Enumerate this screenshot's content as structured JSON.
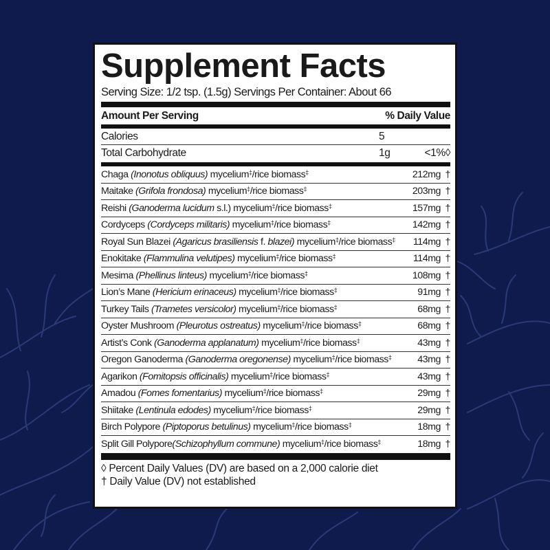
{
  "colors": {
    "background": "#0f1b4c",
    "panel": "#ffffff",
    "text": "#1a1a1a",
    "pattern": "#2a3a78"
  },
  "title": "Supplement Facts",
  "serving": "Serving Size: 1/2 tsp. (1.5g)  Servings Per Container: About 66",
  "header": {
    "amount": "Amount Per Serving",
    "dv": "% Daily Value"
  },
  "nutrients": [
    {
      "label": "Calories",
      "amount": "5",
      "dv": ""
    },
    {
      "label": "Total Carbohydrate",
      "amount": "1g",
      "dv": "<1%◊"
    }
  ],
  "ingredients": [
    {
      "segs": [
        {
          "t": "Chaga "
        },
        {
          "t": "(Inonotus obliquus)",
          "i": true
        },
        {
          "t": " mycelium"
        },
        {
          "t": "‡",
          "s": true
        },
        {
          "t": "/rice biomass"
        },
        {
          "t": "‡",
          "s": true
        }
      ],
      "amount": "212mg",
      "dv": "†"
    },
    {
      "segs": [
        {
          "t": "Maitake "
        },
        {
          "t": "(Grifola frondosa)",
          "i": true
        },
        {
          "t": " mycelium"
        },
        {
          "t": "‡",
          "s": true
        },
        {
          "t": "/rice biomass"
        },
        {
          "t": "‡",
          "s": true
        }
      ],
      "amount": "203mg",
      "dv": "†"
    },
    {
      "segs": [
        {
          "t": "Reishi "
        },
        {
          "t": "(Ganoderma lucidum",
          "i": true
        },
        {
          "t": " s.l.)"
        },
        {
          "t": " mycelium"
        },
        {
          "t": "‡",
          "s": true
        },
        {
          "t": "/rice biomass"
        },
        {
          "t": "‡",
          "s": true
        }
      ],
      "amount": "157mg",
      "dv": "†"
    },
    {
      "segs": [
        {
          "t": "Cordyceps "
        },
        {
          "t": "(Cordyceps militaris)",
          "i": true
        },
        {
          "t": " mycelium"
        },
        {
          "t": "‡",
          "s": true
        },
        {
          "t": "/rice biomass"
        },
        {
          "t": "‡",
          "s": true
        }
      ],
      "amount": "142mg",
      "dv": "†"
    },
    {
      "segs": [
        {
          "t": "Royal Sun Blazei "
        },
        {
          "t": "(Agaricus brasiliensis",
          "i": true
        },
        {
          "t": " f. "
        },
        {
          "t": "blazei)",
          "i": true
        },
        {
          "t": " mycelium"
        },
        {
          "t": "‡",
          "s": true
        },
        {
          "t": "/rice biomass"
        },
        {
          "t": "‡",
          "s": true
        }
      ],
      "amount": "114mg",
      "dv": "†"
    },
    {
      "segs": [
        {
          "t": "Enokitake "
        },
        {
          "t": "(Flammulina velutipes)",
          "i": true
        },
        {
          "t": " mycelium"
        },
        {
          "t": "‡",
          "s": true
        },
        {
          "t": "/rice biomass"
        },
        {
          "t": "‡",
          "s": true
        }
      ],
      "amount": "114mg",
      "dv": "†"
    },
    {
      "segs": [
        {
          "t": "Mesima "
        },
        {
          "t": "(Phellinus linteus)",
          "i": true
        },
        {
          "t": " mycelium"
        },
        {
          "t": "‡",
          "s": true
        },
        {
          "t": "/rice biomass"
        },
        {
          "t": "‡",
          "s": true
        }
      ],
      "amount": "108mg",
      "dv": "†"
    },
    {
      "segs": [
        {
          "t": "Lion’s Mane "
        },
        {
          "t": "(Hericium erinaceus)",
          "i": true
        },
        {
          "t": " mycelium"
        },
        {
          "t": "‡",
          "s": true
        },
        {
          "t": "/rice biomass"
        },
        {
          "t": "‡",
          "s": true
        }
      ],
      "amount": "91mg",
      "dv": "†"
    },
    {
      "segs": [
        {
          "t": "Turkey Tails "
        },
        {
          "t": "(Trametes versicolor)",
          "i": true
        },
        {
          "t": " mycelium"
        },
        {
          "t": "‡",
          "s": true
        },
        {
          "t": "/rice biomass"
        },
        {
          "t": "‡",
          "s": true
        }
      ],
      "amount": "68mg",
      "dv": "†"
    },
    {
      "segs": [
        {
          "t": "Oyster Mushroom "
        },
        {
          "t": "(Pleurotus ostreatus)",
          "i": true
        },
        {
          "t": " mycelium"
        },
        {
          "t": "‡",
          "s": true
        },
        {
          "t": "/rice biomass"
        },
        {
          "t": "‡",
          "s": true
        }
      ],
      "amount": "68mg",
      "dv": "†"
    },
    {
      "segs": [
        {
          "t": "Artist’s Conk "
        },
        {
          "t": "(Ganoderma applanatum)",
          "i": true
        },
        {
          "t": " mycelium"
        },
        {
          "t": "‡",
          "s": true
        },
        {
          "t": "/rice biomass"
        },
        {
          "t": "‡",
          "s": true
        }
      ],
      "amount": "43mg",
      "dv": "†"
    },
    {
      "segs": [
        {
          "t": "Oregon Ganoderma "
        },
        {
          "t": "(Ganoderma oregonense)",
          "i": true
        },
        {
          "t": " mycelium"
        },
        {
          "t": "‡",
          "s": true
        },
        {
          "t": "/rice biomass"
        },
        {
          "t": "‡",
          "s": true
        }
      ],
      "amount": "43mg",
      "dv": "†"
    },
    {
      "segs": [
        {
          "t": "Agarikon "
        },
        {
          "t": "(Fomitopsis officinalis)",
          "i": true
        },
        {
          "t": " mycelium"
        },
        {
          "t": "‡",
          "s": true
        },
        {
          "t": "/rice biomass"
        },
        {
          "t": "‡",
          "s": true
        }
      ],
      "amount": "43mg",
      "dv": "†"
    },
    {
      "segs": [
        {
          "t": "Amadou "
        },
        {
          "t": "(Fomes fomentarius)",
          "i": true
        },
        {
          "t": " mycelium"
        },
        {
          "t": "‡",
          "s": true
        },
        {
          "t": "/rice biomass"
        },
        {
          "t": "‡",
          "s": true
        }
      ],
      "amount": "29mg",
      "dv": "†"
    },
    {
      "segs": [
        {
          "t": "Shiitake "
        },
        {
          "t": "(Lentinula edodes)",
          "i": true
        },
        {
          "t": " mycelium"
        },
        {
          "t": "‡",
          "s": true
        },
        {
          "t": "/rice biomass"
        },
        {
          "t": "‡",
          "s": true
        }
      ],
      "amount": "29mg",
      "dv": "†"
    },
    {
      "segs": [
        {
          "t": "Birch Polypore "
        },
        {
          "t": "(Piptoporus betulinus)",
          "i": true
        },
        {
          "t": " mycelium"
        },
        {
          "t": "‡",
          "s": true
        },
        {
          "t": "/rice biomass"
        },
        {
          "t": "‡",
          "s": true
        }
      ],
      "amount": "18mg",
      "dv": "†"
    },
    {
      "segs": [
        {
          "t": "Split Gill Polypore"
        },
        {
          "t": "(Schizophyllum commune)",
          "i": true
        },
        {
          "t": " mycelium"
        },
        {
          "t": "‡",
          "s": true
        },
        {
          "t": "/rice biomass"
        },
        {
          "t": "‡",
          "s": true
        }
      ],
      "amount": "18mg",
      "dv": "†"
    }
  ],
  "footnotes": [
    "◊ Percent Daily Values (DV) are based on a 2,000 calorie diet",
    "† Daily Value (DV) not established"
  ]
}
